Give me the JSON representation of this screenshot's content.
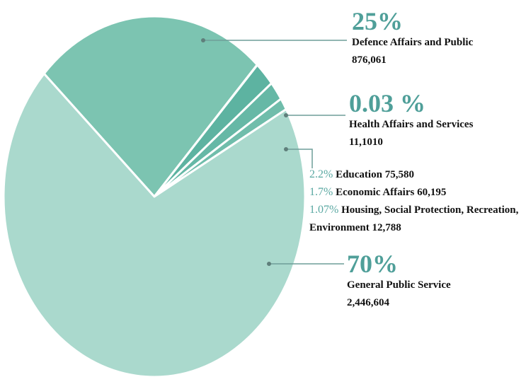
{
  "chart_data": {
    "type": "pie",
    "categories": [
      "Defence Affairs and Public",
      "Health Affairs and Services",
      "Education",
      "Economic Affairs",
      "Housing, Social Protection, Recreation, Environment",
      "General Public Service"
    ],
    "values": [
      25,
      0.03,
      2.2,
      1.7,
      1.07,
      70
    ],
    "value_labels": [
      "25%",
      "0.03 %",
      "2.2%",
      "1.7%",
      "1.07%",
      "70%"
    ],
    "amounts": [
      "876,061",
      "11,1010",
      "75,580",
      "60,195",
      "12,788",
      "2,446,604"
    ],
    "colors": [
      "#7cc4b1",
      "#cce8e0",
      "#5db3a1",
      "#66b8a6",
      "#70bdab",
      "#aad9cd"
    ]
  }
}
